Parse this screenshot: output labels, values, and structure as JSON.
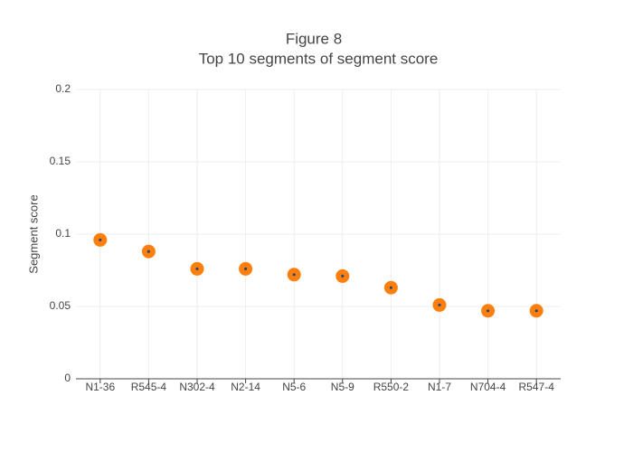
{
  "chart_data": {
    "type": "scatter",
    "title": "Figure 8",
    "subtitle": "Top 10 segments of segment score",
    "y_label": "Segment score",
    "categories": [
      "N1-36",
      "R545-4",
      "N302-4",
      "N2-14",
      "N5-6",
      "N5-9",
      "R550-2",
      "N1-7",
      "N704-4",
      "R547-4"
    ],
    "values": [
      0.096,
      0.088,
      0.076,
      0.076,
      0.072,
      0.071,
      0.063,
      0.051,
      0.047,
      0.047
    ],
    "color": "#ff7f0e",
    "center_color": "#2c4a6e",
    "ylim": [
      0,
      0.2
    ],
    "yticks": [
      0,
      0.05,
      0.1,
      0.15,
      0.2
    ],
    "grid": true
  }
}
